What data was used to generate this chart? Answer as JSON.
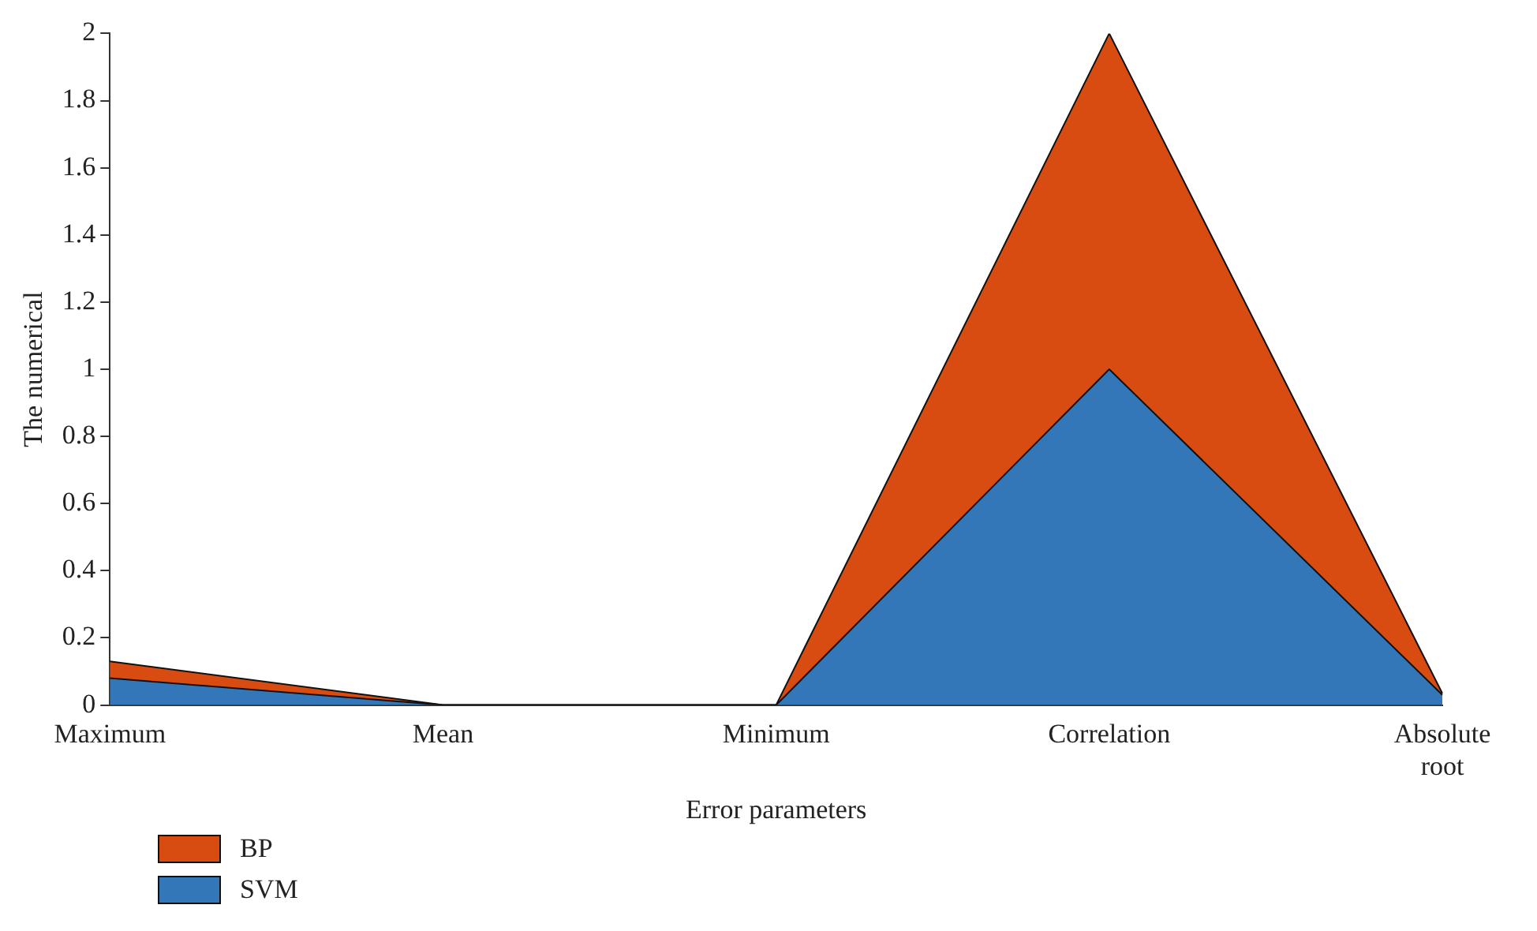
{
  "chart_data": {
    "type": "area",
    "stacked": true,
    "xlabel": "Error parameters",
    "ylabel": "The numerical",
    "categories": [
      "Maximum",
      "Mean",
      "Minimum",
      "Correlation",
      "Absolute root"
    ],
    "series": [
      {
        "name": "SVM",
        "color": "#3477b8",
        "values": [
          0.08,
          0,
          0,
          1,
          0.03
        ]
      },
      {
        "name": "BP",
        "color": "#d94c11",
        "values": [
          0.05,
          0,
          0,
          1,
          0.005
        ]
      }
    ],
    "ylim": [
      0,
      2
    ],
    "yticks": [
      0,
      0.2,
      0.4,
      0.6,
      0.8,
      1,
      1.2,
      1.4,
      1.6,
      1.8,
      2
    ],
    "grid": false,
    "legend": "bottom left"
  }
}
